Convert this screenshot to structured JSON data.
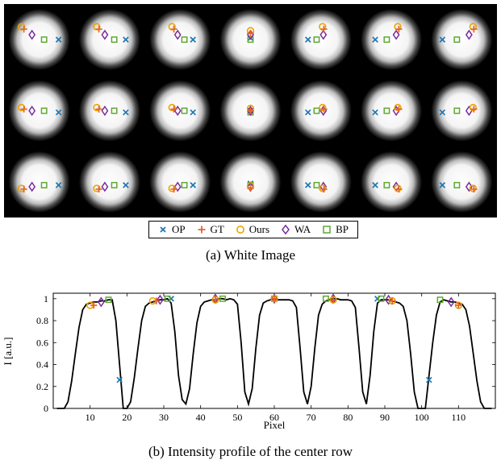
{
  "figure": {
    "caption_a": "(a) White Image",
    "caption_b": "(b) Intensity profile of the center row"
  },
  "legend": [
    {
      "key": "OP",
      "label": "OP",
      "color": "#1f77b4",
      "marker": "x"
    },
    {
      "key": "GT",
      "label": "GT",
      "color": "#e8632a",
      "marker": "plus"
    },
    {
      "key": "Ours",
      "label": "Ours",
      "color": "#e9a500",
      "marker": "circle"
    },
    {
      "key": "WA",
      "label": "WA",
      "color": "#7b2c9e",
      "marker": "diamond"
    },
    {
      "key": "BP",
      "label": "BP",
      "color": "#5fa832",
      "marker": "square"
    }
  ],
  "white_image": {
    "rows": 3,
    "cols": 7,
    "background": "#000000"
  },
  "chart_data": {
    "type": "line",
    "xlabel": "Pixel",
    "ylabel": "I [a.u.]",
    "xlim": [
      0,
      120
    ],
    "ylim": [
      0,
      1.05
    ],
    "xticks": [
      10,
      20,
      30,
      40,
      50,
      60,
      70,
      80,
      90,
      100,
      110
    ],
    "yticks": [
      0,
      0.2,
      0.4,
      0.6,
      0.8,
      1
    ],
    "ytick_labels": [
      "0",
      "0.2",
      "0.4",
      "0.6",
      "0.8",
      "1"
    ],
    "profile": {
      "x": [
        1,
        2,
        3,
        4,
        5,
        6,
        7,
        8,
        9,
        10,
        11,
        12,
        13,
        14,
        15,
        16,
        17,
        18,
        19,
        20,
        21,
        22,
        23,
        24,
        25,
        26,
        27,
        28,
        29,
        30,
        31,
        32,
        33,
        34,
        35,
        36,
        37,
        38,
        39,
        40,
        41,
        42,
        43,
        44,
        45,
        46,
        47,
        48,
        49,
        50,
        51,
        52,
        53,
        54,
        55,
        56,
        57,
        58,
        59,
        60,
        61,
        62,
        63,
        64,
        65,
        66,
        67,
        68,
        69,
        70,
        71,
        72,
        73,
        74,
        75,
        76,
        77,
        78,
        79,
        80,
        81,
        82,
        83,
        84,
        85,
        86,
        87,
        88,
        89,
        90,
        91,
        92,
        93,
        94,
        95,
        96,
        97,
        98,
        99,
        100,
        101,
        102,
        103,
        104,
        105,
        106,
        107,
        108,
        109,
        110,
        111,
        112,
        113,
        114,
        115,
        116,
        117,
        118,
        119
      ],
      "y": [
        0,
        0,
        0,
        0.06,
        0.25,
        0.5,
        0.74,
        0.9,
        0.95,
        0.96,
        0.97,
        0.97,
        0.98,
        0.98,
        0.99,
        0.99,
        0.8,
        0.4,
        0,
        0,
        0.06,
        0.28,
        0.55,
        0.8,
        0.93,
        0.96,
        0.97,
        0.98,
        0.99,
        0.99,
        1.0,
        0.96,
        0.7,
        0.3,
        0.08,
        0.04,
        0.18,
        0.5,
        0.78,
        0.93,
        0.97,
        0.98,
        0.99,
        0.99,
        1.0,
        1.0,
        0.99,
        1.0,
        0.99,
        0.95,
        0.6,
        0.15,
        0.04,
        0.18,
        0.55,
        0.85,
        0.96,
        0.98,
        0.99,
        1.0,
        0.99,
        0.99,
        0.99,
        0.99,
        0.98,
        0.92,
        0.55,
        0.15,
        0.04,
        0.2,
        0.55,
        0.85,
        0.95,
        0.98,
        0.99,
        1.0,
        1.0,
        0.99,
        0.99,
        0.99,
        0.98,
        0.92,
        0.55,
        0.15,
        0.04,
        0.3,
        0.7,
        0.96,
        0.99,
        0.99,
        0.99,
        0.98,
        0.97,
        0.96,
        0.93,
        0.8,
        0.5,
        0.15,
        0,
        0,
        0,
        0.3,
        0.6,
        0.85,
        0.97,
        0.99,
        0.98,
        0.97,
        0.97,
        0.96,
        0.95,
        0.9,
        0.75,
        0.5,
        0.25,
        0.06,
        0,
        0,
        0
      ]
    },
    "markers": {
      "OP": [
        [
          18,
          0.26
        ],
        [
          32,
          1.0
        ],
        [
          88,
          1.0
        ],
        [
          102,
          0.26
        ]
      ],
      "GT": [
        [
          11,
          0.94
        ],
        [
          28,
          0.98
        ],
        [
          44,
          0.99
        ],
        [
          60,
          1.0
        ],
        [
          76,
          0.99
        ],
        [
          92,
          0.98
        ],
        [
          110,
          0.94
        ]
      ],
      "Ours": [
        [
          10,
          0.94
        ],
        [
          27,
          0.98
        ],
        [
          44,
          0.99
        ],
        [
          60,
          1.0
        ],
        [
          76,
          0.99
        ],
        [
          92,
          0.98
        ],
        [
          110,
          0.94
        ]
      ],
      "WA": [
        [
          13,
          0.97
        ],
        [
          29,
          0.99
        ],
        [
          44,
          1.0
        ],
        [
          60,
          1.0
        ],
        [
          76,
          1.0
        ],
        [
          91,
          0.99
        ],
        [
          108,
          0.97
        ]
      ],
      "BP": [
        [
          15,
          0.99
        ],
        [
          31,
          1.0
        ],
        [
          46,
          1.0
        ],
        [
          60,
          1.0
        ],
        [
          74,
          1.0
        ],
        [
          89,
          1.0
        ],
        [
          105,
          0.99
        ]
      ]
    }
  }
}
